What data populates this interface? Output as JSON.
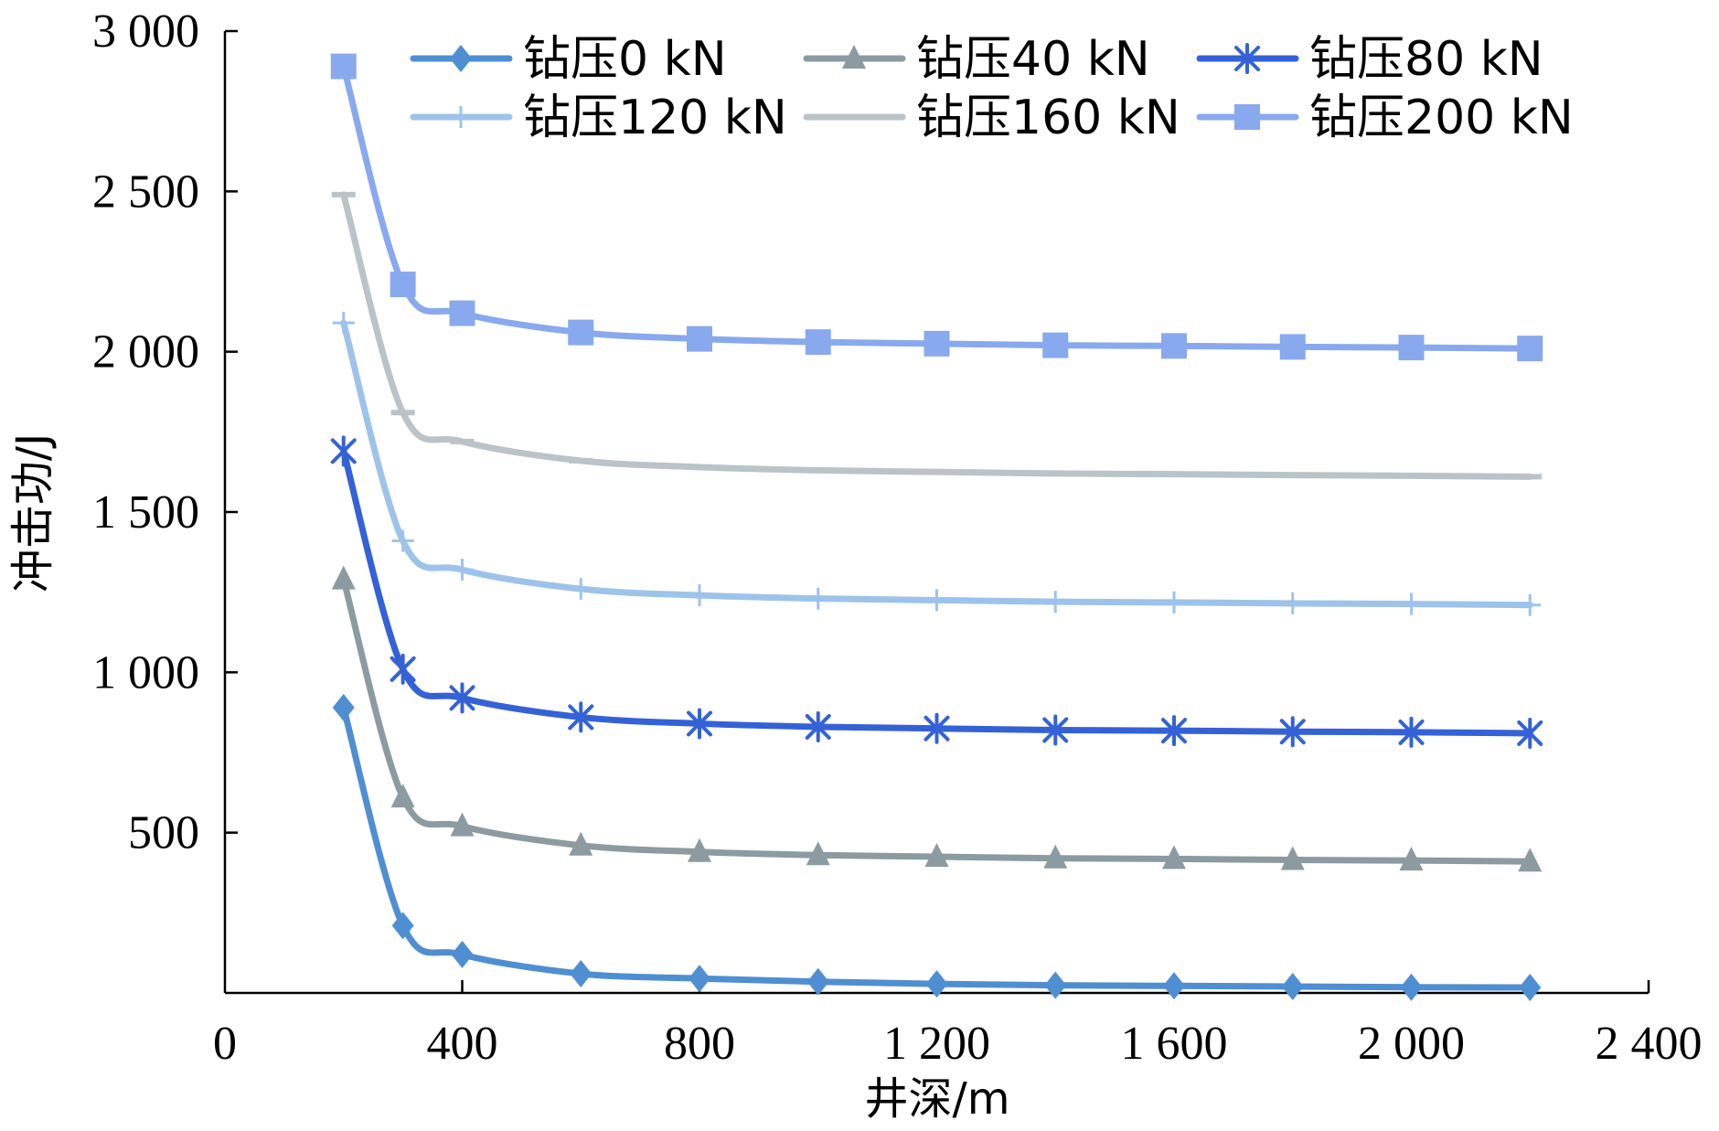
{
  "chart_data": {
    "type": "line",
    "xlabel": "井深/m",
    "ylabel": "冲击功/J",
    "xlim": [
      0,
      2400
    ],
    "ylim": [
      0,
      3000
    ],
    "x_ticks": [
      0,
      400,
      800,
      1200,
      1600,
      2000,
      2400
    ],
    "x_tick_labels": [
      "0",
      "400",
      "800",
      "1 200",
      "1 600",
      "2 000",
      "2 400"
    ],
    "y_ticks": [
      500,
      1000,
      1500,
      2000,
      2500,
      3000
    ],
    "y_tick_labels": [
      "500",
      "1 000",
      "1 500",
      "2 000",
      "2 500",
      "3 000"
    ],
    "grid": false,
    "legend_position": "top",
    "x": [
      200,
      300,
      400,
      600,
      800,
      1000,
      1200,
      1400,
      1600,
      1800,
      2000,
      2200
    ],
    "series": [
      {
        "name": "钻压0 kN",
        "color": "#4f8fd1",
        "marker": "diamond",
        "values": [
          890,
          210,
          120,
          60,
          45,
          35,
          28,
          24,
          22,
          20,
          18,
          17
        ]
      },
      {
        "name": "钻压40 kN",
        "color": "#8c9aa1",
        "marker": "triangle",
        "values": [
          1290,
          610,
          520,
          460,
          440,
          430,
          425,
          420,
          418,
          415,
          413,
          410
        ]
      },
      {
        "name": "钻压80 kN",
        "color": "#3462d6",
        "marker": "star",
        "values": [
          1690,
          1010,
          920,
          860,
          840,
          830,
          825,
          820,
          818,
          815,
          813,
          810
        ]
      },
      {
        "name": "钻压120 kN",
        "color": "#9dc3ea",
        "marker": "plus",
        "values": [
          2090,
          1410,
          1320,
          1260,
          1240,
          1230,
          1225,
          1220,
          1218,
          1215,
          1213,
          1210
        ]
      },
      {
        "name": "钻压160 kN",
        "color": "#bac3c8",
        "marker": "dash",
        "values": [
          2490,
          1810,
          1720,
          1660,
          1640,
          1630,
          1625,
          1620,
          1618,
          1615,
          1613,
          1610
        ]
      },
      {
        "name": "钻压200 kN",
        "color": "#89a9ee",
        "marker": "square",
        "values": [
          2890,
          2210,
          2120,
          2060,
          2040,
          2030,
          2025,
          2020,
          2018,
          2015,
          2013,
          2010
        ]
      }
    ]
  }
}
